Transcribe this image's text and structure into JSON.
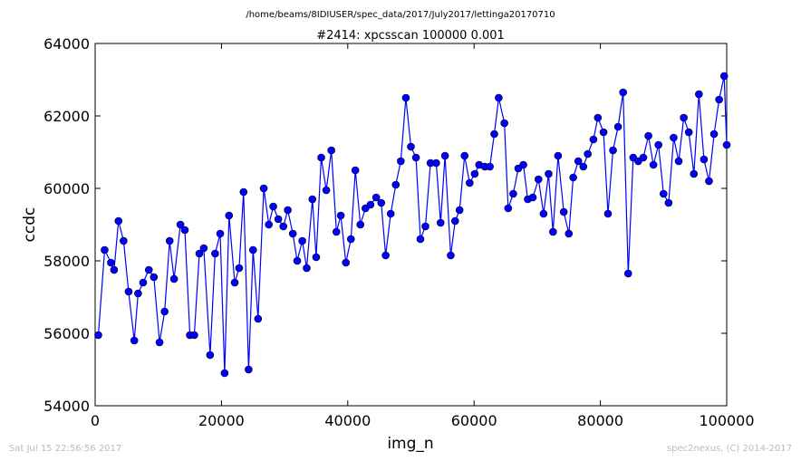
{
  "header": {
    "path": "/home/beams/8IDIUSER/spec_data/2017/July2017/lettinga20170710",
    "title": "#2414: xpcsscan 100000 0.001"
  },
  "footer": {
    "timestamp": "Sat Jul 15 22:56:56 2017",
    "credit": "spec2nexus, (C) 2014-2017"
  },
  "chart_data": {
    "type": "line",
    "title": "#2414: xpcsscan 100000 0.001",
    "xlabel": "img_n",
    "ylabel": "ccdc",
    "xlim": [
      0,
      100000
    ],
    "ylim": [
      54000,
      64000
    ],
    "xticks": [
      0,
      20000,
      40000,
      60000,
      80000,
      100000
    ],
    "yticks": [
      54000,
      56000,
      58000,
      60000,
      62000,
      64000
    ],
    "grid": false,
    "line_color": "#0000ff",
    "marker_color": "#0000ff",
    "marker": "circle",
    "x": [
      500,
      1500,
      2500,
      3000,
      3700,
      4500,
      5300,
      6200,
      6800,
      7600,
      8500,
      9300,
      10200,
      11000,
      11800,
      12500,
      13500,
      14200,
      15000,
      15700,
      16500,
      17200,
      18200,
      19000,
      19800,
      20500,
      21200,
      22100,
      22800,
      23500,
      24300,
      25000,
      25800,
      26700,
      27500,
      28200,
      29000,
      29800,
      30500,
      31300,
      32000,
      32800,
      33500,
      34400,
      35000,
      35800,
      36600,
      37400,
      38200,
      38900,
      39700,
      40500,
      41200,
      42000,
      42800,
      43600,
      44500,
      45300,
      46000,
      46800,
      47600,
      48400,
      49200,
      50000,
      50800,
      51500,
      52300,
      53100,
      54000,
      54700,
      55400,
      56300,
      57000,
      57700,
      58500,
      59300,
      60100,
      60800,
      61700,
      62500,
      63200,
      63900,
      64800,
      65400,
      66200,
      67000,
      67800,
      68500,
      69300,
      70200,
      71000,
      71800,
      72500,
      73300,
      74200,
      75000,
      75700,
      76500,
      77300,
      78000,
      78900,
      79600,
      80500,
      81200,
      82000,
      82800,
      83600,
      84400,
      85200,
      86000,
      86800,
      87600,
      88400,
      89200,
      90000,
      90800,
      91600,
      92400,
      93200,
      94000,
      94800,
      95600,
      96400,
      97200,
      98000,
      98800,
      99600,
      100000
    ],
    "y": [
      55950,
      58300,
      57950,
      57750,
      59100,
      58550,
      57150,
      55800,
      57100,
      57400,
      57750,
      57550,
      55750,
      56600,
      58550,
      57500,
      59000,
      58850,
      55950,
      55950,
      58200,
      58350,
      55400,
      58200,
      58750,
      54900,
      59250,
      57400,
      57800,
      59900,
      55000,
      58300,
      56400,
      60000,
      59000,
      59500,
      59150,
      58950,
      59400,
      58750,
      58000,
      58550,
      57800,
      59700,
      58100,
      60850,
      59950,
      61050,
      58800,
      59250,
      57950,
      58600,
      60500,
      59000,
      59450,
      59550,
      59750,
      59600,
      58150,
      59300,
      60100,
      60750,
      62500,
      61150,
      60850,
      58600,
      58950,
      60700,
      60700,
      59050,
      60900,
      58150,
      59100,
      59400,
      60900,
      60150,
      60400,
      60650,
      60600,
      60600,
      61500,
      62500,
      61800,
      59450,
      59850,
      60550,
      60650,
      59700,
      59750,
      60250,
      59300,
      60400,
      58800,
      60900,
      59350,
      58750,
      60300,
      60750,
      60600,
      60950,
      61350,
      61950,
      61550,
      59300,
      61050,
      61700,
      62650,
      57650,
      60850,
      60750,
      60850,
      61450,
      60650,
      61200,
      59850,
      59600,
      61400,
      60750,
      61950,
      61550,
      60400,
      62600,
      60800,
      60200,
      61500,
      62450,
      63100,
      61200
    ]
  }
}
